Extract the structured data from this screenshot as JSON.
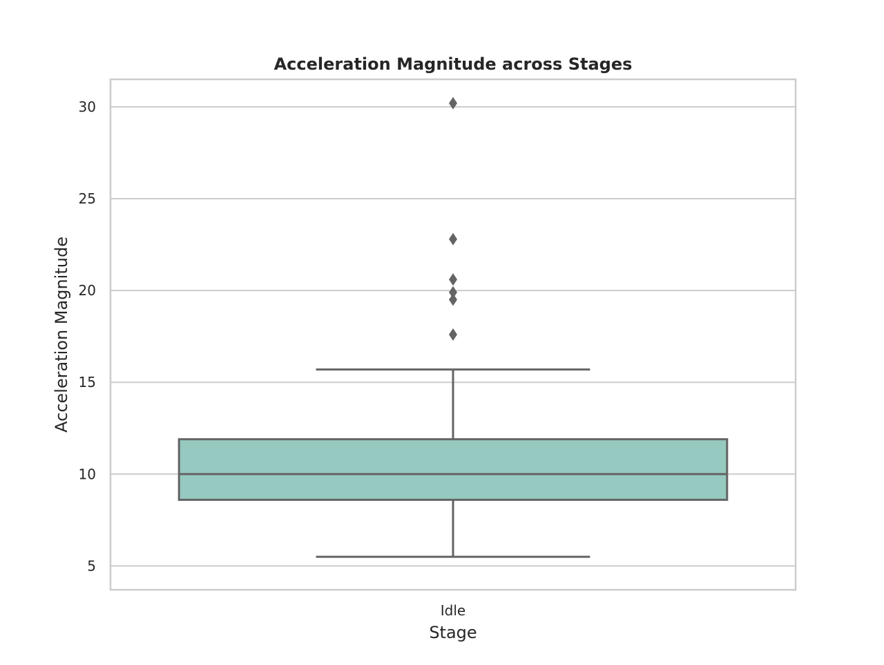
{
  "chart_data": {
    "type": "box",
    "title": "Acceleration Magnitude across Stages",
    "xlabel": "Stage",
    "ylabel": "Acceleration Magnitude",
    "categories": [
      "Idle"
    ],
    "ylim": [
      3.7,
      31.5
    ],
    "yticks": [
      {
        "value": 5,
        "label": "5"
      },
      {
        "value": 10,
        "label": "10"
      },
      {
        "value": 15,
        "label": "15"
      },
      {
        "value": 20,
        "label": "20"
      },
      {
        "value": 25,
        "label": "25"
      },
      {
        "value": 30,
        "label": "30"
      }
    ],
    "grid": true,
    "boxes": [
      {
        "category": "Idle",
        "whisker_low": 5.5,
        "q1": 8.6,
        "median": 10.0,
        "q3": 11.9,
        "whisker_high": 15.7,
        "outliers": [
          17.6,
          19.5,
          19.9,
          20.6,
          22.8,
          30.2
        ]
      }
    ],
    "colors": {
      "box_fill": "#96c9bf",
      "box_line": "#646464",
      "outlier": "#646464",
      "grid": "#cccccc",
      "frame": "#cccccc"
    }
  }
}
